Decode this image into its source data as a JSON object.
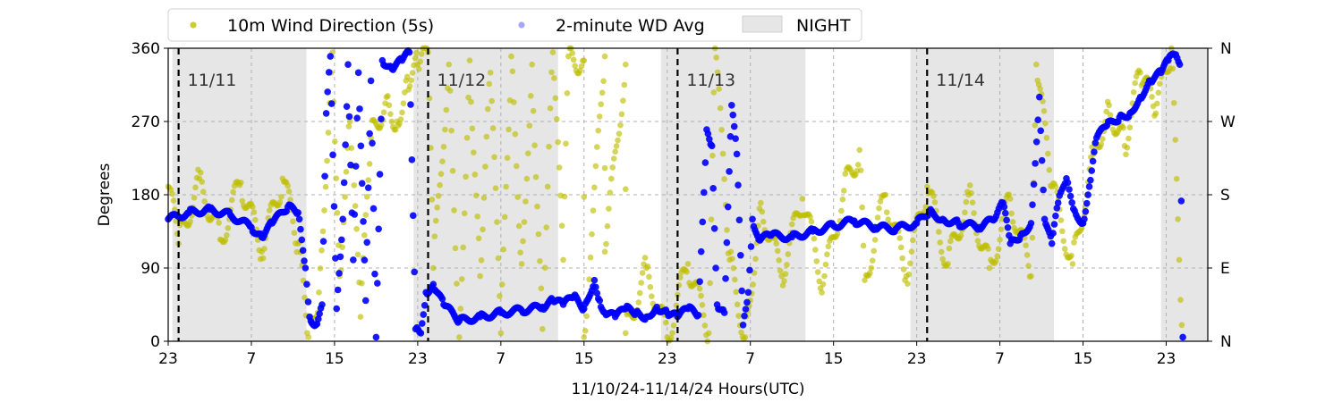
{
  "chart_data": {
    "type": "scatter",
    "title": "",
    "xlabel": "11/10/24-11/14/24  Hours(UTC)",
    "ylabel": "Degrees",
    "ylim": [
      0,
      360
    ],
    "x_range_hours": [
      0,
      100
    ],
    "x_unit": "hours since 11/10/24 23:00 UTC",
    "x_ticks": [
      {
        "h": 0,
        "label": "23"
      },
      {
        "h": 8,
        "label": "7"
      },
      {
        "h": 16,
        "label": "15"
      },
      {
        "h": 24,
        "label": "23"
      },
      {
        "h": 32,
        "label": "7"
      },
      {
        "h": 40,
        "label": "15"
      },
      {
        "h": 48,
        "label": "23"
      },
      {
        "h": 56,
        "label": "7"
      },
      {
        "h": 64,
        "label": "15"
      },
      {
        "h": 72,
        "label": "23"
      },
      {
        "h": 80,
        "label": "7"
      },
      {
        "h": 88,
        "label": "15"
      },
      {
        "h": 96,
        "label": "23"
      }
    ],
    "y_ticks": [
      0,
      90,
      180,
      270,
      360
    ],
    "y2_ticks": [
      {
        "deg": 0,
        "label": "N"
      },
      {
        "deg": 90,
        "label": "E"
      },
      {
        "deg": 180,
        "label": "S"
      },
      {
        "deg": 270,
        "label": "W"
      },
      {
        "deg": 360,
        "label": "N"
      }
    ],
    "grid": true,
    "legend_position": "top",
    "legend": [
      {
        "label": "10m Wind Direction (5s)",
        "color": "#bfbf00",
        "kind": "dot"
      },
      {
        "label": "2-minute WD Avg",
        "color": "#0000ff",
        "kind": "dot"
      },
      {
        "label": "NIGHT",
        "color": "#e6e6e6",
        "kind": "patch"
      }
    ],
    "night_periods_hours": [
      [
        0.4,
        13.3
      ],
      [
        23.6,
        37.5
      ],
      [
        47.4,
        61.3
      ],
      [
        71.4,
        85.2
      ],
      [
        95.5,
        100
      ]
    ],
    "day_markers": [
      {
        "h": 1,
        "label": "11/11"
      },
      {
        "h": 25,
        "label": "11/12"
      },
      {
        "h": 49,
        "label": "11/13"
      },
      {
        "h": 73,
        "label": "11/14"
      }
    ],
    "series": [
      {
        "name": "2-minute WD Avg",
        "color": "#0000ff",
        "points": [
          [
            0,
            150
          ],
          [
            2,
            158
          ],
          [
            4,
            162
          ],
          [
            6,
            155
          ],
          [
            8,
            140
          ],
          [
            9,
            128
          ],
          [
            10,
            145
          ],
          [
            11.5,
            165
          ],
          [
            12.5,
            158
          ],
          [
            13.2,
            90
          ],
          [
            13.6,
            30
          ],
          [
            14.2,
            20
          ],
          [
            14.8,
            45
          ],
          [
            15.2,
            280
          ],
          [
            15.6,
            350
          ],
          [
            16.2,
            40
          ],
          [
            16.8,
            150
          ],
          [
            17.3,
            340
          ],
          [
            17.8,
            100
          ],
          [
            18.3,
            330
          ],
          [
            19,
            50
          ],
          [
            19.5,
            320
          ],
          [
            20,
            5
          ],
          [
            20.6,
            345
          ],
          [
            21.5,
            335
          ],
          [
            22.5,
            345
          ],
          [
            23.2,
            355
          ],
          [
            23.8,
            15
          ],
          [
            24.3,
            10
          ],
          [
            24.8,
            60
          ],
          [
            25.5,
            70
          ],
          [
            26.5,
            45
          ],
          [
            28,
            25
          ],
          [
            30,
            30
          ],
          [
            32,
            35
          ],
          [
            34,
            38
          ],
          [
            36,
            42
          ],
          [
            37,
            50
          ],
          [
            38,
            45
          ],
          [
            39,
            55
          ],
          [
            40,
            40
          ],
          [
            41,
            75
          ],
          [
            41.5,
            50
          ],
          [
            42,
            35
          ],
          [
            43,
            30
          ],
          [
            44,
            40
          ],
          [
            45,
            35
          ],
          [
            46,
            30
          ],
          [
            47,
            42
          ],
          [
            48,
            35
          ],
          [
            49,
            30
          ],
          [
            50,
            40
          ],
          [
            51,
            32
          ],
          [
            51.8,
            260
          ],
          [
            52.3,
            240
          ],
          [
            52.8,
            45
          ],
          [
            53.5,
            35
          ],
          [
            54.2,
            290
          ],
          [
            54.7,
            230
          ],
          [
            55.3,
            20
          ],
          [
            55.8,
            60
          ],
          [
            56.2,
            150
          ],
          [
            56.8,
            125
          ],
          [
            58,
            130
          ],
          [
            60,
            128
          ],
          [
            62,
            135
          ],
          [
            64,
            142
          ],
          [
            66,
            148
          ],
          [
            68,
            140
          ],
          [
            70,
            138
          ],
          [
            72,
            145
          ],
          [
            73.2,
            160
          ],
          [
            74.5,
            150
          ],
          [
            76,
            145
          ],
          [
            78,
            140
          ],
          [
            79.5,
            150
          ],
          [
            80.3,
            170
          ],
          [
            81,
            120
          ],
          [
            82,
            130
          ],
          [
            83,
            145
          ],
          [
            83.8,
            300
          ],
          [
            84.3,
            150
          ],
          [
            85,
            120
          ],
          [
            85.6,
            170
          ],
          [
            86.4,
            200
          ],
          [
            87.2,
            160
          ],
          [
            88,
            145
          ],
          [
            88.6,
            190
          ],
          [
            89.3,
            250
          ],
          [
            90.3,
            265
          ],
          [
            91.5,
            275
          ],
          [
            92.5,
            280
          ],
          [
            93.5,
            300
          ],
          [
            94.5,
            320
          ],
          [
            95.5,
            330
          ],
          [
            96.2,
            345
          ],
          [
            96.8,
            352
          ],
          [
            97.3,
            340
          ],
          [
            97.6,
            5
          ]
        ]
      },
      {
        "name": "10m Wind Direction (5s)",
        "color": "#bfbf00",
        "points": [
          [
            0,
            190
          ],
          [
            1,
            120
          ],
          [
            3,
            200
          ],
          [
            5,
            125
          ],
          [
            7,
            195
          ],
          [
            9,
            110
          ],
          [
            11,
            200
          ],
          [
            12.5,
            120
          ],
          [
            13.5,
            5
          ],
          [
            14.5,
            60
          ],
          [
            15.8,
            355
          ],
          [
            16.5,
            80
          ],
          [
            17.5,
            270
          ],
          [
            18.5,
            30
          ],
          [
            19.5,
            250
          ],
          [
            21,
            300
          ],
          [
            22,
            270
          ],
          [
            23,
            325
          ],
          [
            24,
            340
          ],
          [
            25,
            355
          ],
          [
            27,
            340
          ],
          [
            29,
            345
          ],
          [
            31,
            330
          ],
          [
            33,
            350
          ],
          [
            35,
            340
          ],
          [
            37,
            355
          ],
          [
            38.5,
            350
          ],
          [
            40,
            345
          ],
          [
            42,
            350
          ],
          [
            44,
            340
          ],
          [
            25.5,
            90
          ],
          [
            28,
            5
          ],
          [
            30,
            80
          ],
          [
            32,
            10
          ],
          [
            34,
            95
          ],
          [
            36,
            15
          ],
          [
            38,
            100
          ],
          [
            40,
            5
          ],
          [
            42,
            110
          ],
          [
            44,
            10
          ],
          [
            46,
            90
          ],
          [
            48,
            5
          ],
          [
            50,
            95
          ],
          [
            52,
            10
          ],
          [
            54,
            100
          ],
          [
            55.5,
            5
          ],
          [
            57,
            170
          ],
          [
            59,
            80
          ],
          [
            61,
            175
          ],
          [
            63,
            70
          ],
          [
            65,
            185
          ],
          [
            67,
            75
          ],
          [
            69,
            180
          ],
          [
            71,
            80
          ],
          [
            73,
            190
          ],
          [
            75,
            95
          ],
          [
            77,
            180
          ],
          [
            79,
            90
          ],
          [
            81,
            175
          ],
          [
            83,
            80
          ],
          [
            85,
            190
          ],
          [
            87,
            95
          ],
          [
            89,
            230
          ],
          [
            90.5,
            290
          ],
          [
            92,
            240
          ],
          [
            93.5,
            330
          ],
          [
            95,
            280
          ],
          [
            96.5,
            360
          ],
          [
            97.5,
            20
          ],
          [
            66.5,
            235
          ],
          [
            52.6,
            365
          ],
          [
            83.5,
            340
          ]
        ]
      }
    ]
  }
}
